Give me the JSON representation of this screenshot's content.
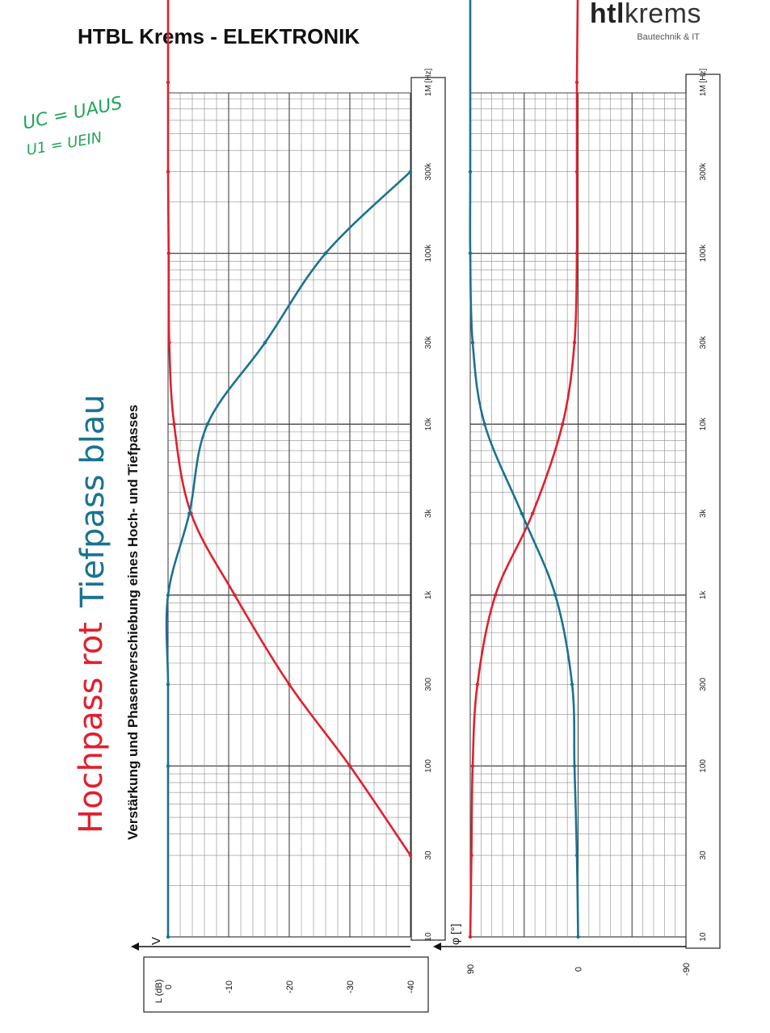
{
  "header": {
    "title": "HTBL Krems - ELEKTRONIK",
    "logo_brand_bold": "htl",
    "logo_brand_rest": "krems",
    "logo_subtitle": "Bautechnik & IT"
  },
  "annotations": {
    "formula_1": "UC = UAUS",
    "formula_2": "U1 = UEIN",
    "highpass_note": "Hochpass rot",
    "lowpass_note": "Tiefpass blau"
  },
  "colors": {
    "highpass": "#e0202e",
    "lowpass": "#1a7290",
    "formula": "#1fa55a",
    "grid": "#8c8c8c"
  },
  "chart_data": [
    {
      "type": "line",
      "title": "Verstärkung und Phasenverschiebung eines Hoch- und Tiefpasses",
      "xlabel": "[Hz]",
      "x_scale": "log",
      "xlim": [
        10,
        10000000
      ],
      "x_ticks": [
        "10",
        "30",
        "100",
        "300",
        "1k",
        "3k",
        "10k",
        "30k",
        "100k",
        "300k",
        "1M [Hz]"
      ],
      "x_tick_values": [
        10,
        30,
        100,
        300,
        1000,
        3000,
        10000,
        30000,
        100000,
        300000,
        1000000
      ],
      "ylabel": "L (dB)",
      "axis_arrow_label": "V",
      "ylim": [
        -40,
        0
      ],
      "y_ticks": [
        "0",
        "-10",
        "-20",
        "-30",
        "-40"
      ],
      "y_tick_values": [
        0,
        -10,
        -20,
        -30,
        -40
      ],
      "series": [
        {
          "color": "#e0202e",
          "x": [
            30,
            100,
            300,
            1000,
            3000,
            10000,
            30000,
            100000,
            300000,
            1000000,
            5000000
          ],
          "y": [
            -40,
            -30,
            -20,
            -11,
            -3.8,
            -1,
            -0.2,
            -0.1,
            0,
            0,
            0
          ]
        },
        {
          "color": "#1a7290",
          "x": [
            10,
            100,
            300,
            1000,
            3000,
            10000,
            30000,
            100000,
            300000
          ],
          "y": [
            0,
            0,
            0,
            0,
            -3.5,
            -6.5,
            -16,
            -26,
            -40
          ]
        }
      ]
    },
    {
      "type": "line",
      "x_scale": "log",
      "xlim": [
        10,
        10000000
      ],
      "x_ticks": [
        "10",
        "30",
        "100",
        "300",
        "1k",
        "3k",
        "10k",
        "30k",
        "100k",
        "300k",
        "1M [Hz]"
      ],
      "x_tick_values": [
        10,
        30,
        100,
        300,
        1000,
        3000,
        10000,
        30000,
        100000,
        300000,
        1000000
      ],
      "ylabel": "φ [°]",
      "ylim": [
        -90,
        90
      ],
      "y_ticks": [
        "90",
        "0",
        "-90"
      ],
      "y_tick_values": [
        90,
        0,
        -90
      ],
      "series": [
        {
          "color": "#e0202e",
          "x": [
            10,
            30,
            100,
            300,
            1000,
            3000,
            10000,
            30000,
            100000,
            300000,
            1000000,
            5000000
          ],
          "y": [
            90,
            89,
            88,
            84,
            69,
            38,
            13,
            3,
            1,
            1,
            1,
            0
          ]
        },
        {
          "color": "#1a7290",
          "x": [
            10,
            30,
            100,
            300,
            1000,
            3000,
            10000,
            30000,
            100000,
            300000,
            5000000
          ],
          "y": [
            0,
            1,
            3,
            5,
            19,
            47,
            78,
            88,
            90,
            90,
            90
          ]
        }
      ]
    }
  ]
}
